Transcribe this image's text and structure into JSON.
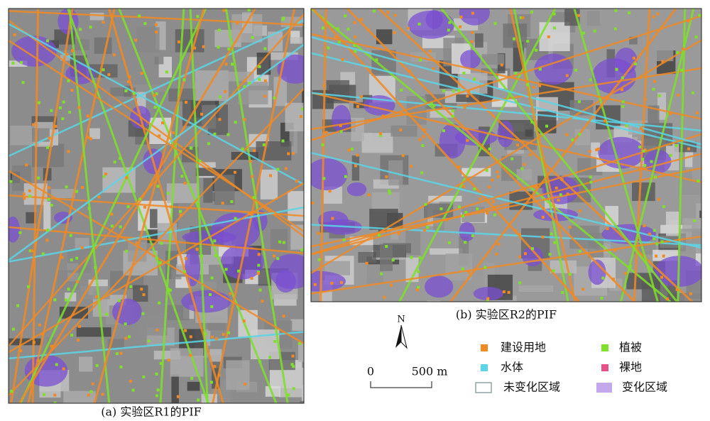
{
  "panels": [
    {
      "caption": "(a) 实验区R1的PIF"
    },
    {
      "caption": "(b) 实验区R2的PIF"
    }
  ],
  "north_arrow": {
    "label": "N"
  },
  "scale_bar": {
    "labels": [
      "0",
      "500 m"
    ]
  },
  "legend": [
    {
      "label": "建设用地",
      "color": "#f08a24",
      "shape": "dot"
    },
    {
      "label": "植被",
      "color": "#7ee02a",
      "shape": "dot"
    },
    {
      "label": "水体",
      "color": "#5ad6e8",
      "shape": "dot"
    },
    {
      "label": "裸地",
      "color": "#e8508a",
      "shape": "dot"
    },
    {
      "label": "未变化区域",
      "color": "#8fa3a3",
      "shape": "outline"
    },
    {
      "label": "变化区域",
      "color": "#c4a8ec",
      "shape": "fill"
    }
  ]
}
